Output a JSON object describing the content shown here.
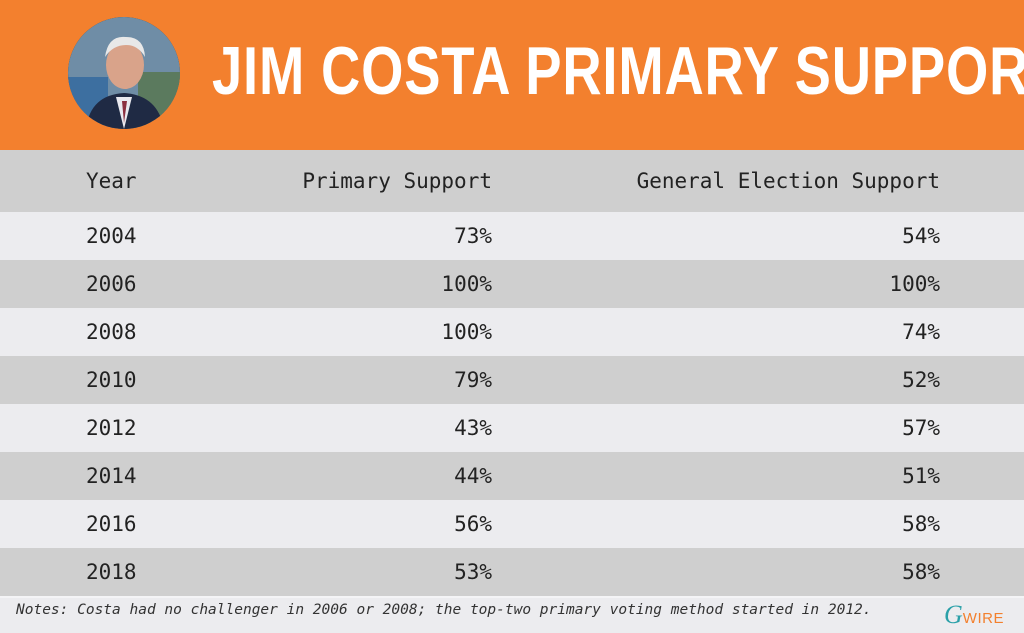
{
  "header": {
    "title": "JIM COSTA PRIMARY SUPPORT"
  },
  "chart_data": {
    "type": "table",
    "title": "JIM COSTA PRIMARY SUPPORT",
    "columns": [
      "Year",
      "Primary Support",
      "General Election Support"
    ],
    "rows": [
      [
        "2004",
        "73%",
        "54%"
      ],
      [
        "2006",
        "100%",
        "100%"
      ],
      [
        "2008",
        "100%",
        "74%"
      ],
      [
        "2010",
        "79%",
        "52%"
      ],
      [
        "2012",
        "43%",
        "57%"
      ],
      [
        "2014",
        "44%",
        "51%"
      ],
      [
        "2016",
        "56%",
        "58%"
      ],
      [
        "2018",
        "53%",
        "58%"
      ]
    ]
  },
  "footer": {
    "notes": "Notes: Costa had no challenger in 2006 or 2008; the top-two primary voting method started in 2012.",
    "logo_mark": "G",
    "logo_text": "WIRE"
  },
  "colors": {
    "header": "#f3802e",
    "row_light": "#ececef",
    "row_dark": "#cfcfcf",
    "logo_teal": "#2aa0a8"
  }
}
